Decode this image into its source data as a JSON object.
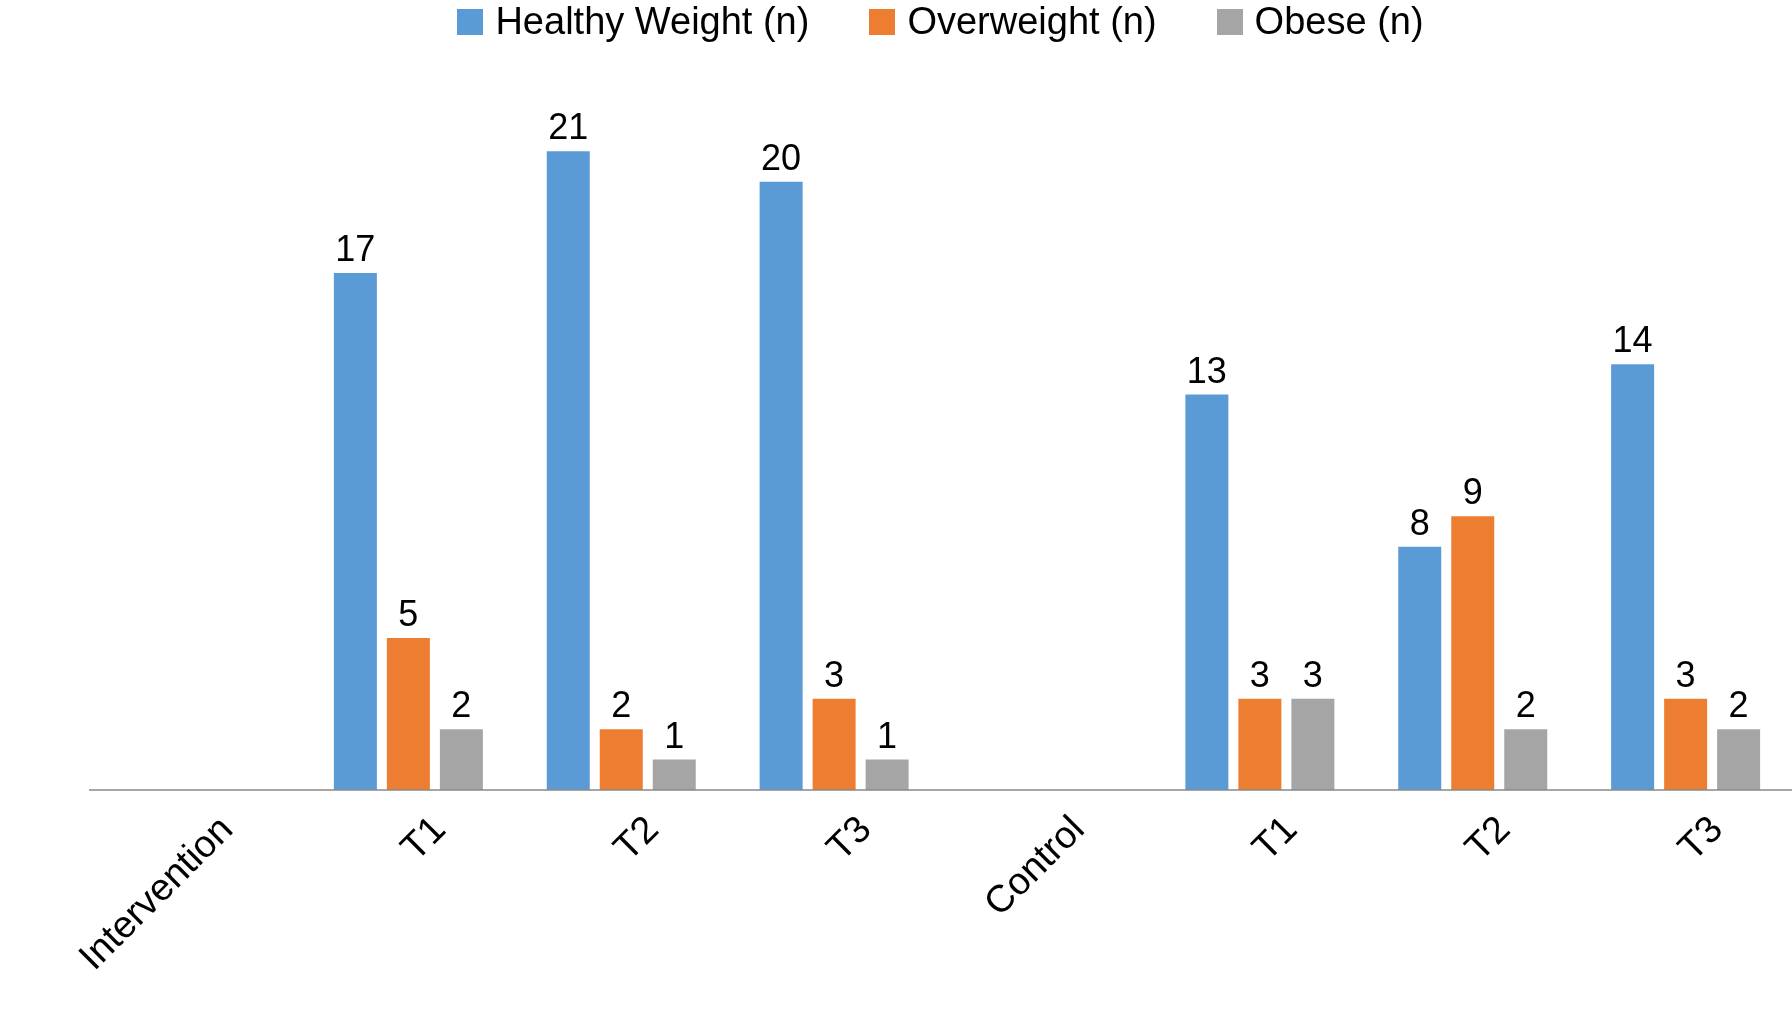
{
  "chart_data": {
    "type": "bar",
    "categories": [
      "Intervention",
      "T1",
      "T2",
      "T3",
      "Control",
      "T1",
      "T2",
      "T3"
    ],
    "series": [
      {
        "name": "Healthy Weight (n)",
        "color": "#5b9bd5",
        "values": [
          null,
          17,
          21,
          20,
          null,
          13,
          8,
          14
        ]
      },
      {
        "name": "Overweight (n)",
        "color": "#ed7d31",
        "values": [
          null,
          5,
          2,
          3,
          null,
          3,
          9,
          3
        ]
      },
      {
        "name": "Obese (n)",
        "color": "#a5a5a5",
        "values": [
          null,
          2,
          1,
          1,
          null,
          3,
          2,
          2
        ]
      }
    ],
    "data_labels": true,
    "legend": "top",
    "grid": false
  }
}
